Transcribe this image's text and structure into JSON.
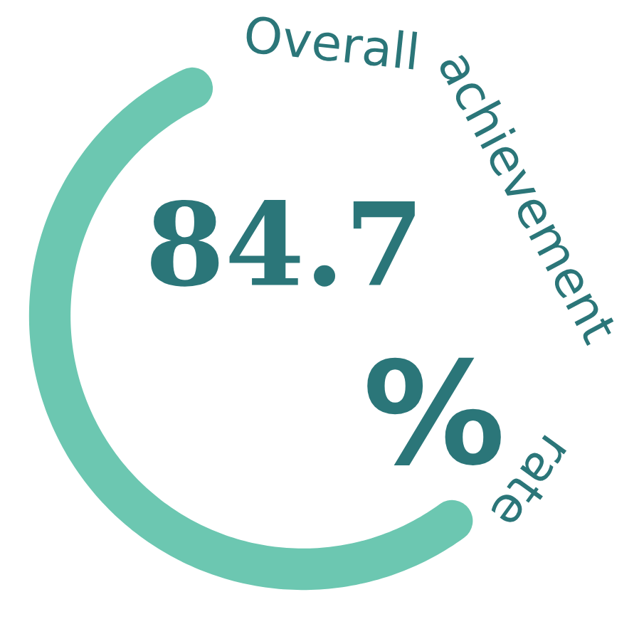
{
  "chart_data": {
    "type": "other",
    "title": "Overall achievement rate",
    "values": [
      84.7
    ],
    "data_labels": true,
    "annotations": [
      "%"
    ]
  }
}
